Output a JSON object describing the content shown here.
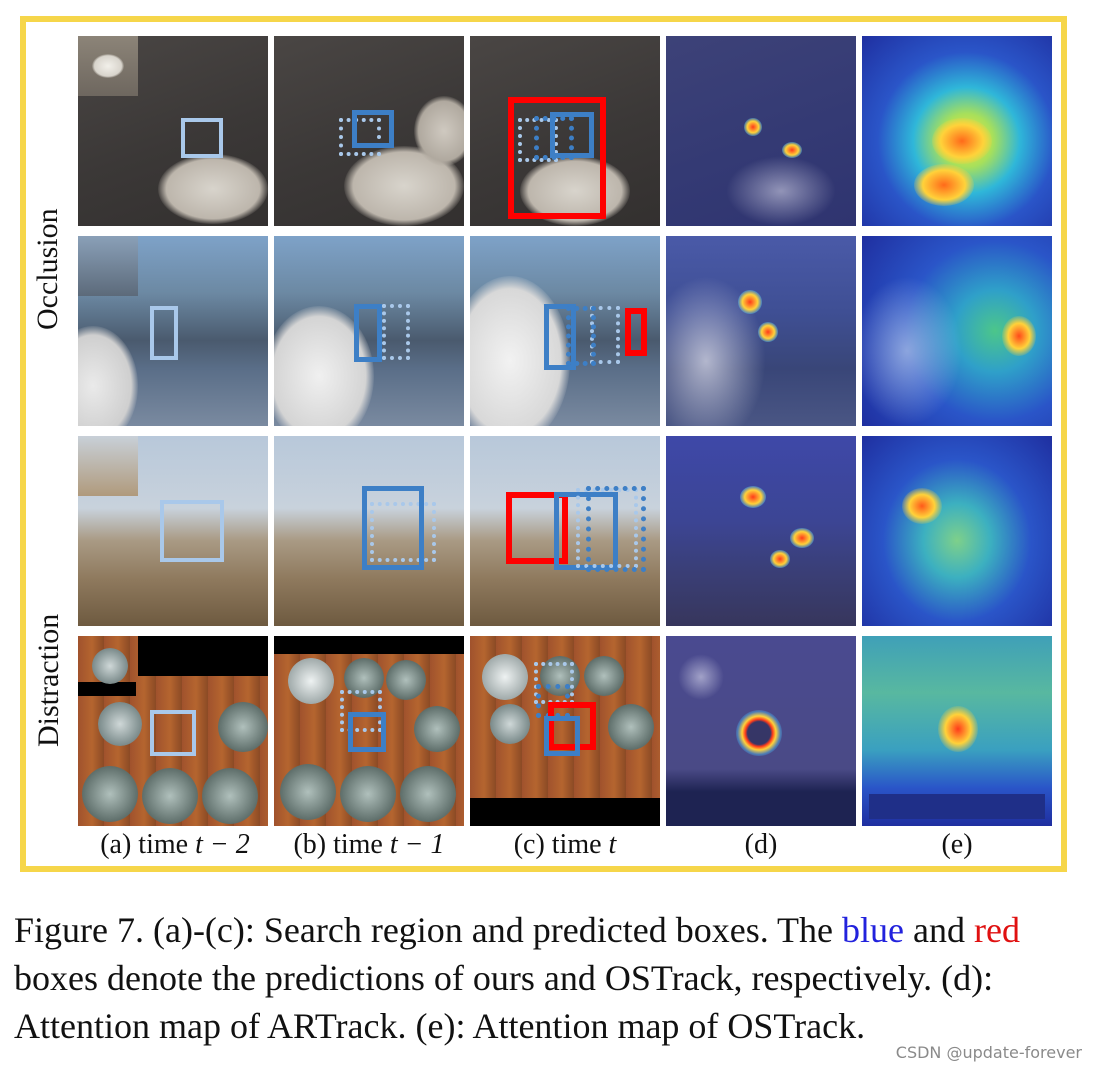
{
  "row_labels": {
    "occlusion": "Occlusion",
    "distraction": "Distraction"
  },
  "column_captions": {
    "a_prefix": "(a) time",
    "a_var": "t − 2",
    "b_prefix": "(b) time",
    "b_var": "t − 1",
    "c_prefix": "(c) time",
    "c_var": "t",
    "d": "(d)",
    "e": "(e)"
  },
  "caption": {
    "part1": "Figure 7. (a)-(c): Search region and predicted boxes. The ",
    "blue_word": "blue",
    "part2": " and ",
    "red_word": "red",
    "part3": " boxes denote the predictions of ours and OSTrack, respectively. (d): Attention map of ARTrack. (e): Attention map of OSTrack."
  },
  "watermark": "CSDN @update-forever",
  "colors": {
    "frame": "#f6d64a",
    "ours_box": "#3d7fc6",
    "ostrack_box": "#ff0000",
    "prev_box": "#a9c8ea"
  }
}
